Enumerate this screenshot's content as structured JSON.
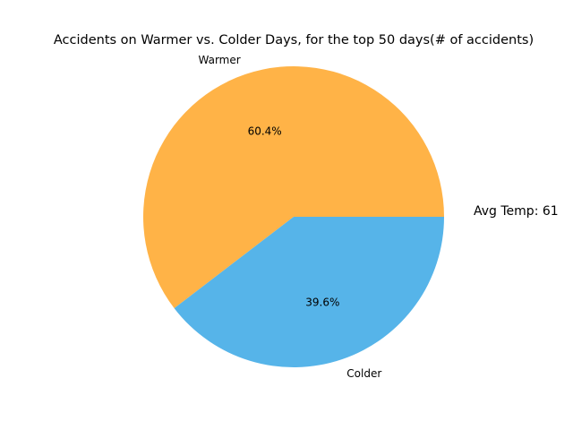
{
  "chart_data": {
    "type": "pie",
    "title": "Accidents on Warmer vs. Colder Days, for the top 50 days(# of accidents)",
    "categories": [
      "Warmer",
      "Colder"
    ],
    "values": [
      60.4,
      39.6
    ],
    "value_labels": [
      "60.4%",
      "39.6%"
    ],
    "colors": [
      "#ffb347",
      "#56b4e9"
    ],
    "annotation": "Avg Temp: 61"
  }
}
